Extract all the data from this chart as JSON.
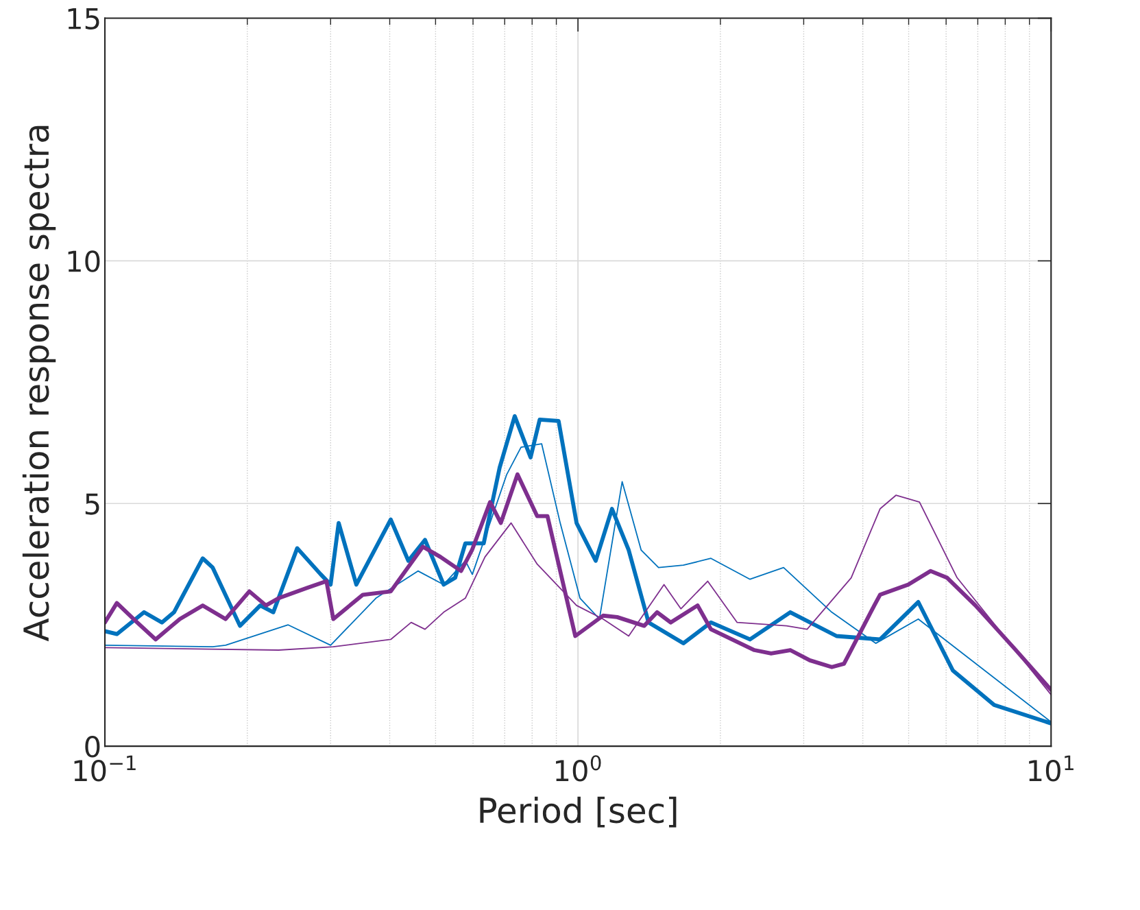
{
  "chart_data": {
    "type": "line",
    "xlabel": "Period [sec]",
    "ylabel": "Acceleration response spectra",
    "log": "x",
    "grid": true,
    "legend": false,
    "xlim": [
      0.1,
      10
    ],
    "xticks": [
      {
        "value": 0.1,
        "label": "10$^{−1}$"
      },
      {
        "value": 1,
        "label": "10$^{0}$"
      },
      {
        "value": 10,
        "label": "10$^{1}$"
      }
    ],
    "ylim": [
      0,
      15
    ],
    "yticks": [
      0,
      5,
      10,
      15
    ],
    "series": [
      {
        "color": "#0072bd",
        "x": [
          0.1,
          0.106,
          0.121,
          0.132,
          0.14,
          0.161,
          0.169,
          0.193,
          0.213,
          0.227,
          0.255,
          0.286,
          0.3,
          0.312,
          0.34,
          0.402,
          0.438,
          0.475,
          0.52,
          0.55,
          0.578,
          0.632,
          0.683,
          0.735,
          0.794,
          0.83,
          0.91,
          0.993,
          1.09,
          1.18,
          1.28,
          1.41,
          1.67,
          1.91,
          2.31,
          2.81,
          3.52,
          4.35,
          5.24,
          6.2,
          7.58,
          10
        ],
        "values": [
          2.37,
          2.31,
          2.76,
          2.55,
          2.76,
          3.87,
          3.68,
          2.48,
          2.9,
          2.76,
          4.08,
          3.54,
          3.33,
          4.6,
          3.33,
          4.67,
          3.82,
          4.25,
          3.33,
          3.47,
          4.18,
          4.18,
          5.74,
          6.8,
          5.95,
          6.73,
          6.7,
          4.6,
          3.82,
          4.89,
          4.04,
          2.55,
          2.12,
          2.55,
          2.2,
          2.76,
          2.27,
          2.2,
          2.97,
          1.56,
          0.85,
          0.47
        ]
      },
      {
        "color": "#0072bd",
        "x": [
          0.1,
          0.169,
          0.18,
          0.244,
          0.3,
          0.374,
          0.459,
          0.52,
          0.578,
          0.598,
          0.707,
          0.758,
          0.838,
          0.917,
          1.01,
          1.11,
          1.24,
          1.36,
          1.48,
          1.67,
          1.91,
          2.31,
          2.72,
          3.44,
          4.26,
          5.24,
          10
        ],
        "values": [
          2.08,
          2.05,
          2.08,
          2.5,
          2.08,
          3.05,
          3.61,
          3.33,
          3.82,
          3.54,
          5.6,
          6.16,
          6.23,
          4.6,
          3.05,
          2.62,
          5.45,
          4.04,
          3.68,
          3.73,
          3.87,
          3.44,
          3.68,
          2.76,
          2.12,
          2.62,
          0.5
        ]
      },
      {
        "color": "#7e2f8e",
        "x": [
          0.1,
          0.106,
          0.117,
          0.128,
          0.144,
          0.161,
          0.18,
          0.202,
          0.219,
          0.233,
          0.267,
          0.294,
          0.304,
          0.351,
          0.402,
          0.47,
          0.512,
          0.566,
          0.597,
          0.652,
          0.687,
          0.745,
          0.82,
          0.862,
          0.987,
          1.13,
          1.21,
          1.38,
          1.47,
          1.57,
          1.79,
          1.91,
          2.36,
          2.56,
          2.81,
          3.09,
          3.44,
          3.65,
          4.23,
          4.35,
          4.99,
          5.56,
          6.03,
          6.92,
          8.39,
          10
        ],
        "values": [
          2.55,
          2.95,
          2.55,
          2.2,
          2.62,
          2.9,
          2.62,
          3.19,
          2.9,
          3.05,
          3.26,
          3.4,
          2.62,
          3.12,
          3.19,
          4.11,
          3.9,
          3.61,
          4.04,
          5.03,
          4.6,
          5.6,
          4.74,
          4.74,
          2.27,
          2.69,
          2.66,
          2.48,
          2.76,
          2.55,
          2.9,
          2.41,
          1.98,
          1.91,
          1.98,
          1.77,
          1.63,
          1.7,
          2.9,
          3.12,
          3.33,
          3.61,
          3.47,
          2.9,
          2.0,
          1.16
        ]
      },
      {
        "color": "#7e2f8e",
        "x": [
          0.1,
          0.233,
          0.304,
          0.402,
          0.444,
          0.475,
          0.52,
          0.578,
          0.636,
          0.722,
          0.82,
          0.993,
          1.13,
          1.28,
          1.52,
          1.65,
          1.88,
          2.17,
          2.76,
          3.05,
          3.78,
          4.35,
          4.7,
          5.27,
          6.33,
          10
        ],
        "values": [
          2.03,
          1.98,
          2.05,
          2.2,
          2.55,
          2.41,
          2.76,
          3.05,
          3.9,
          4.6,
          3.75,
          2.9,
          2.62,
          2.27,
          3.33,
          2.83,
          3.4,
          2.55,
          2.48,
          2.41,
          3.47,
          4.89,
          5.17,
          5.03,
          3.47,
          1.06
        ]
      }
    ]
  }
}
